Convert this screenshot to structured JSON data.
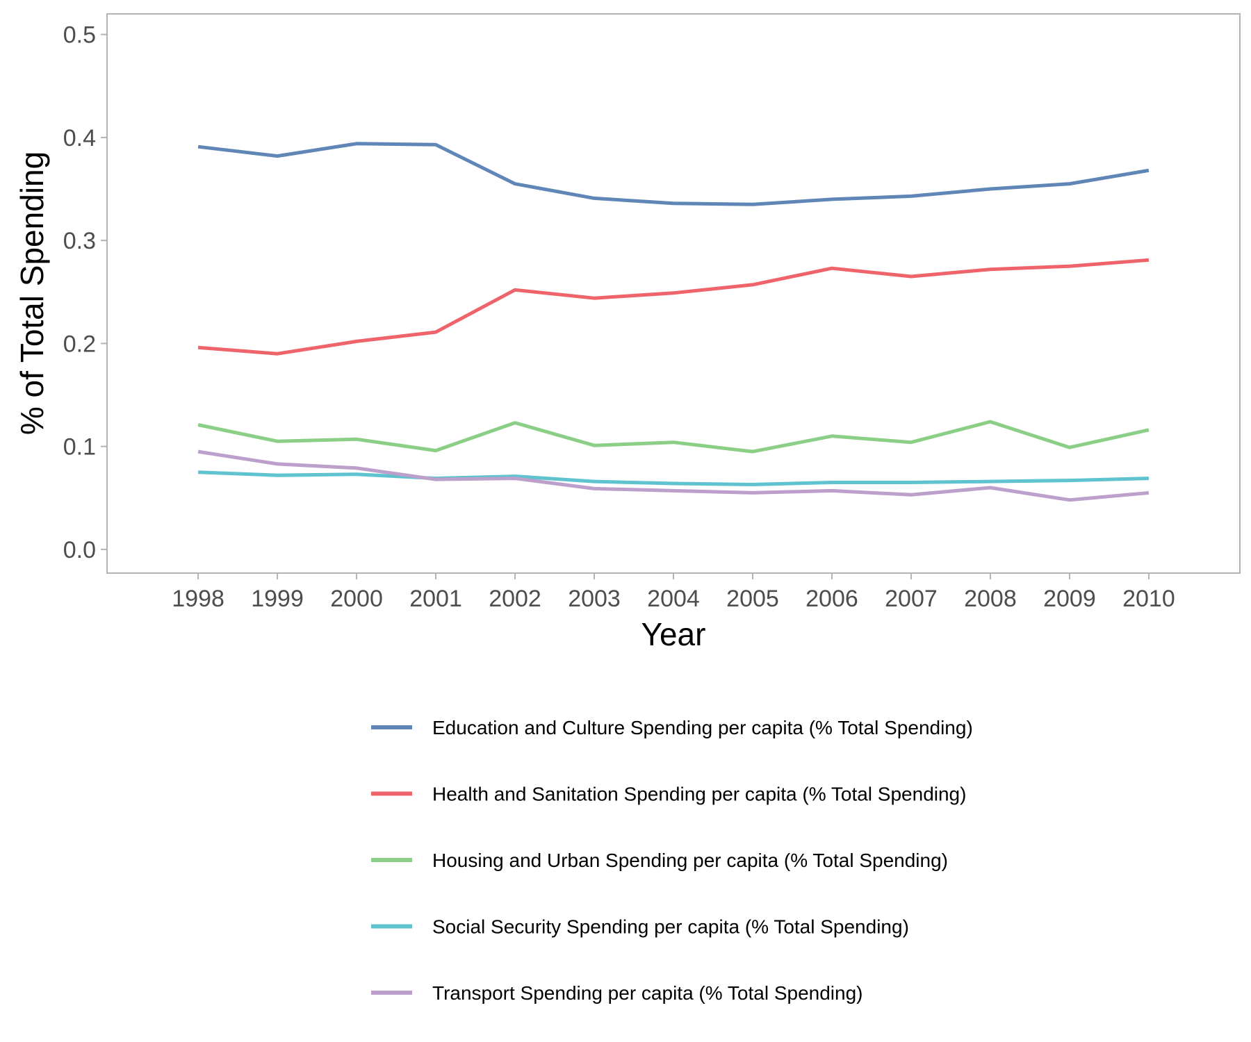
{
  "chart_data": {
    "type": "line",
    "title": "",
    "xlabel": "Year",
    "ylabel": "% of Total Spending",
    "x": [
      1998,
      1999,
      2000,
      2001,
      2002,
      2003,
      2004,
      2005,
      2006,
      2007,
      2008,
      2009,
      2010
    ],
    "xlim": [
      1996.85,
      2011.15
    ],
    "ylim": [
      -0.023,
      0.52
    ],
    "y_ticks": [
      "0.0",
      "0.1",
      "0.2",
      "0.3",
      "0.4",
      "0.5"
    ],
    "y_tick_values": [
      0.0,
      0.1,
      0.2,
      0.3,
      0.4,
      0.5
    ],
    "grid": false,
    "legend_position": "bottom",
    "series": [
      {
        "name": "Education and Culture Spending per capita (% Total Spending)",
        "color": "#5F86B7",
        "values": [
          0.391,
          0.382,
          0.394,
          0.393,
          0.355,
          0.341,
          0.336,
          0.335,
          0.34,
          0.343,
          0.35,
          0.355,
          0.368
        ]
      },
      {
        "name": "Health and Sanitation Spending per capita (% Total Spending)",
        "color": "#EE646A",
        "values": [
          0.196,
          0.19,
          0.202,
          0.211,
          0.252,
          0.244,
          0.249,
          0.257,
          0.273,
          0.265,
          0.272,
          0.275,
          0.281
        ]
      },
      {
        "name": "Housing and Urban Spending per capita (% Total Spending)",
        "color": "#8ACF85",
        "values": [
          0.121,
          0.105,
          0.107,
          0.096,
          0.123,
          0.101,
          0.104,
          0.095,
          0.11,
          0.104,
          0.124,
          0.099,
          0.116
        ]
      },
      {
        "name": "Social Security Spending per capita (% Total Spending)",
        "color": "#5EC3CF",
        "values": [
          0.075,
          0.072,
          0.073,
          0.069,
          0.071,
          0.066,
          0.064,
          0.063,
          0.065,
          0.065,
          0.066,
          0.067,
          0.069
        ]
      },
      {
        "name": "Transport Spending per capita (% Total Spending)",
        "color": "#BC9FCA",
        "values": [
          0.095,
          0.083,
          0.079,
          0.068,
          0.069,
          0.059,
          0.057,
          0.055,
          0.057,
          0.053,
          0.06,
          0.048,
          0.055
        ]
      }
    ]
  }
}
